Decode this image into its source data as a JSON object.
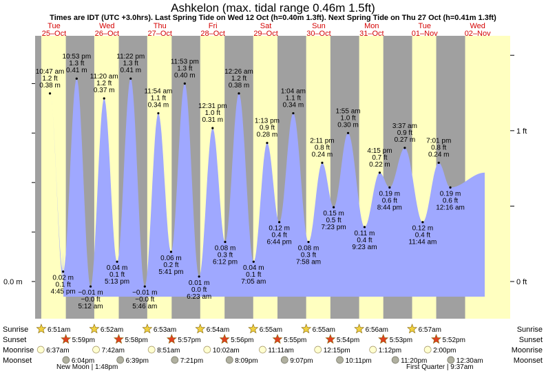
{
  "header": {
    "title": "Ashkelon (max. tidal range 0.46m 1.5ft)",
    "subtitle": "Times are IDT (UTC +3.0hrs). Last Spring Tide on Wed 12 Oct (h=0.40m 1.3ft). Next Spring Tide on Thu 27 Oct (h=0.41m 1.3ft)"
  },
  "colors": {
    "night": "#a0a0a0",
    "day": "#ffffc0",
    "water": "#9fa8ff",
    "dayLabel": "#d40000",
    "sunrise": "#f0d040",
    "sunset": "#e04020",
    "moonrise": "#ffffd0",
    "moonset": "#b0b0a0"
  },
  "chart_data": {
    "type": "area",
    "y_axis_left": {
      "label": "0.0 m",
      "value_m": 0
    },
    "y_axis_right": [
      {
        "label": "1 ft",
        "value_ft": 1
      },
      {
        "label": "0 ft",
        "value_ft": 0
      }
    ],
    "ylim_m": [
      -0.04,
      0.5
    ],
    "days": [
      {
        "dow": "Tue",
        "date": "25–Oct"
      },
      {
        "dow": "Wed",
        "date": "26–Oct"
      },
      {
        "dow": "Thu",
        "date": "27–Oct"
      },
      {
        "dow": "Fri",
        "date": "28–Oct"
      },
      {
        "dow": "Sat",
        "date": "29–Oct"
      },
      {
        "dow": "Sun",
        "date": "30–Oct"
      },
      {
        "dow": "Mon",
        "date": "31–Oct"
      },
      {
        "dow": "Tue",
        "date": "01–Nov"
      },
      {
        "dow": "Wed",
        "date": "02–Nov"
      }
    ],
    "day_periods": [
      {
        "rise": "6:51am",
        "set": "5:59pm"
      },
      {
        "rise": "6:52am",
        "set": "5:58pm"
      },
      {
        "rise": "6:53am",
        "set": "5:57pm"
      },
      {
        "rise": "6:54am",
        "set": "5:56pm"
      },
      {
        "rise": "6:55am",
        "set": "5:55pm"
      },
      {
        "rise": "6:55am",
        "set": "5:54pm"
      },
      {
        "rise": "6:56am",
        "set": "5:53pm"
      },
      {
        "rise": "6:57am",
        "set": "5:52pm"
      }
    ],
    "tides": [
      {
        "day": 0,
        "time": "10:47 am",
        "m": 0.38,
        "m_label": "0.38 m",
        "ft": "1.2 ft",
        "type": "high"
      },
      {
        "day": 0,
        "time": "4:45 pm",
        "m": 0.02,
        "m_label": "0.02 m",
        "ft": "0.1 ft",
        "type": "low"
      },
      {
        "day": 0,
        "time": "10:53 pm",
        "m": 0.41,
        "m_label": "0.41 m",
        "ft": "1.3 ft",
        "type": "high"
      },
      {
        "day": 1,
        "time": "5:12 am",
        "m": -0.01,
        "m_label": "−0.01 m",
        "ft": "−0.0 ft",
        "type": "low"
      },
      {
        "day": 1,
        "time": "11:20 am",
        "m": 0.37,
        "m_label": "0.37 m",
        "ft": "1.2 ft",
        "type": "high"
      },
      {
        "day": 1,
        "time": "5:13 pm",
        "m": 0.04,
        "m_label": "0.04 m",
        "ft": "0.1 ft",
        "type": "low"
      },
      {
        "day": 1,
        "time": "11:22 pm",
        "m": 0.41,
        "m_label": "0.41 m",
        "ft": "1.3 ft",
        "type": "high"
      },
      {
        "day": 2,
        "time": "5:46 am",
        "m": -0.01,
        "m_label": "−0.01 m",
        "ft": "−0.0 ft",
        "type": "low"
      },
      {
        "day": 2,
        "time": "11:54 am",
        "m": 0.34,
        "m_label": "0.34 m",
        "ft": "1.1 ft",
        "type": "high"
      },
      {
        "day": 2,
        "time": "5:41 pm",
        "m": 0.06,
        "m_label": "0.06 m",
        "ft": "0.2 ft",
        "type": "low"
      },
      {
        "day": 2,
        "time": "11:53 pm",
        "m": 0.4,
        "m_label": "0.40 m",
        "ft": "1.3 ft",
        "type": "high"
      },
      {
        "day": 3,
        "time": "6:23 am",
        "m": 0.01,
        "m_label": "0.01 m",
        "ft": "0.0 ft",
        "type": "low"
      },
      {
        "day": 3,
        "time": "12:31 pm",
        "m": 0.31,
        "m_label": "0.31 m",
        "ft": "1.0 ft",
        "type": "high"
      },
      {
        "day": 3,
        "time": "6:12 pm",
        "m": 0.08,
        "m_label": "0.08 m",
        "ft": "0.3 ft",
        "type": "low"
      },
      {
        "day": 4,
        "time": "12:26 am",
        "m": 0.38,
        "m_label": "0.38 m",
        "ft": "1.2 ft",
        "type": "high"
      },
      {
        "day": 4,
        "time": "7:05 am",
        "m": 0.04,
        "m_label": "0.04 m",
        "ft": "0.1 ft",
        "type": "low"
      },
      {
        "day": 4,
        "time": "1:13 pm",
        "m": 0.28,
        "m_label": "0.28 m",
        "ft": "0.9 ft",
        "type": "high"
      },
      {
        "day": 4,
        "time": "6:44 pm",
        "m": 0.12,
        "m_label": "0.12 m",
        "ft": "0.4 ft",
        "type": "low"
      },
      {
        "day": 5,
        "time": "1:04 am",
        "m": 0.34,
        "m_label": "0.34 m",
        "ft": "1.1 ft",
        "type": "high"
      },
      {
        "day": 5,
        "time": "7:58 am",
        "m": 0.08,
        "m_label": "0.08 m",
        "ft": "0.3 ft",
        "type": "low"
      },
      {
        "day": 5,
        "time": "2:11 pm",
        "m": 0.24,
        "m_label": "0.24 m",
        "ft": "0.8 ft",
        "type": "high"
      },
      {
        "day": 5,
        "time": "7:23 pm",
        "m": 0.15,
        "m_label": "0.15 m",
        "ft": "0.5 ft",
        "type": "low"
      },
      {
        "day": 6,
        "time": "1:55 am",
        "m": 0.3,
        "m_label": "0.30 m",
        "ft": "1.0 ft",
        "type": "high"
      },
      {
        "day": 6,
        "time": "9:23 am",
        "m": 0.11,
        "m_label": "0.11 m",
        "ft": "0.4 ft",
        "type": "low"
      },
      {
        "day": 6,
        "time": "4:15 pm",
        "m": 0.22,
        "m_label": "0.22 m",
        "ft": "0.7 ft",
        "type": "high"
      },
      {
        "day": 6,
        "time": "8:44 pm",
        "m": 0.19,
        "m_label": "0.19 m",
        "ft": "0.6 ft",
        "type": "low"
      },
      {
        "day": 7,
        "time": "3:37 am",
        "m": 0.27,
        "m_label": "0.27 m",
        "ft": "0.9 ft",
        "type": "high"
      },
      {
        "day": 7,
        "time": "11:44 am",
        "m": 0.12,
        "m_label": "0.12 m",
        "ft": "0.4 ft",
        "type": "low"
      },
      {
        "day": 7,
        "time": "7:01 pm",
        "m": 0.24,
        "m_label": "0.24 m",
        "ft": "0.8 ft",
        "type": "high"
      },
      {
        "day": 8,
        "time": "12:16 am",
        "m": 0.19,
        "m_label": "0.19 m",
        "ft": "0.6 ft",
        "type": "low"
      }
    ]
  },
  "astro": {
    "row_labels": [
      "Sunrise",
      "Sunset",
      "Moonrise",
      "Moonset"
    ],
    "moonrise": [
      "6:37am",
      "7:42am",
      "8:51am",
      "10:02am",
      "11:11am",
      "12:15pm",
      "1:12pm",
      "2:00pm"
    ],
    "moonset": [
      "6:04pm",
      "6:39pm",
      "7:21pm",
      "8:09pm",
      "9:07pm",
      "10:11pm",
      "11:20pm",
      "12:30am"
    ],
    "phases": [
      {
        "label": "New Moon | 1:48pm"
      },
      {
        "label": "First Quarter | 9:37am"
      }
    ]
  }
}
